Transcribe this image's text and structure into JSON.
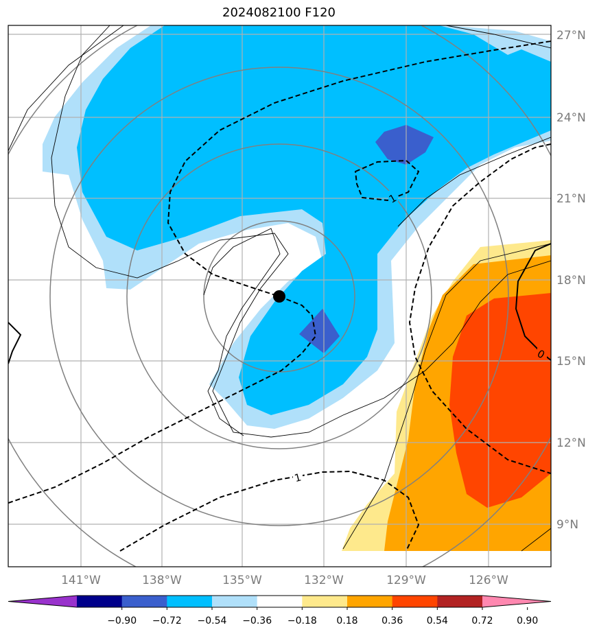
{
  "title": "2024082100 F120",
  "lon_labels": [
    "141°W",
    "138°W",
    "135°W",
    "132°W",
    "129°W",
    "126°W"
  ],
  "lat_labels": [
    "27°N",
    "24°N",
    "21°N",
    "18°N",
    "15°N",
    "12°N",
    "9°N"
  ],
  "colorbar": {
    "ticks": [
      "−0.90",
      "−0.72",
      "−0.54",
      "−0.36",
      "−0.18",
      "0.18",
      "0.36",
      "0.54",
      "0.72",
      "0.90"
    ],
    "colors": [
      "#9932cc",
      "#00008b",
      "#3a5fcd",
      "#00bfff",
      "#b0e0fa",
      "#ffffff",
      "#fee98c",
      "#ffa500",
      "#ff4500",
      "#b22222",
      "#ff88b0"
    ]
  },
  "contour_labels": [
    "1",
    "1",
    "0"
  ],
  "colors": {
    "light_blue": "#b0e0fa",
    "blue": "#00bfff",
    "dark_blue": "#3a5fcd",
    "pale_yellow": "#fee98c",
    "orange": "#ffa500",
    "red_orange": "#ff4500",
    "grid": "#b0b0b0"
  }
}
